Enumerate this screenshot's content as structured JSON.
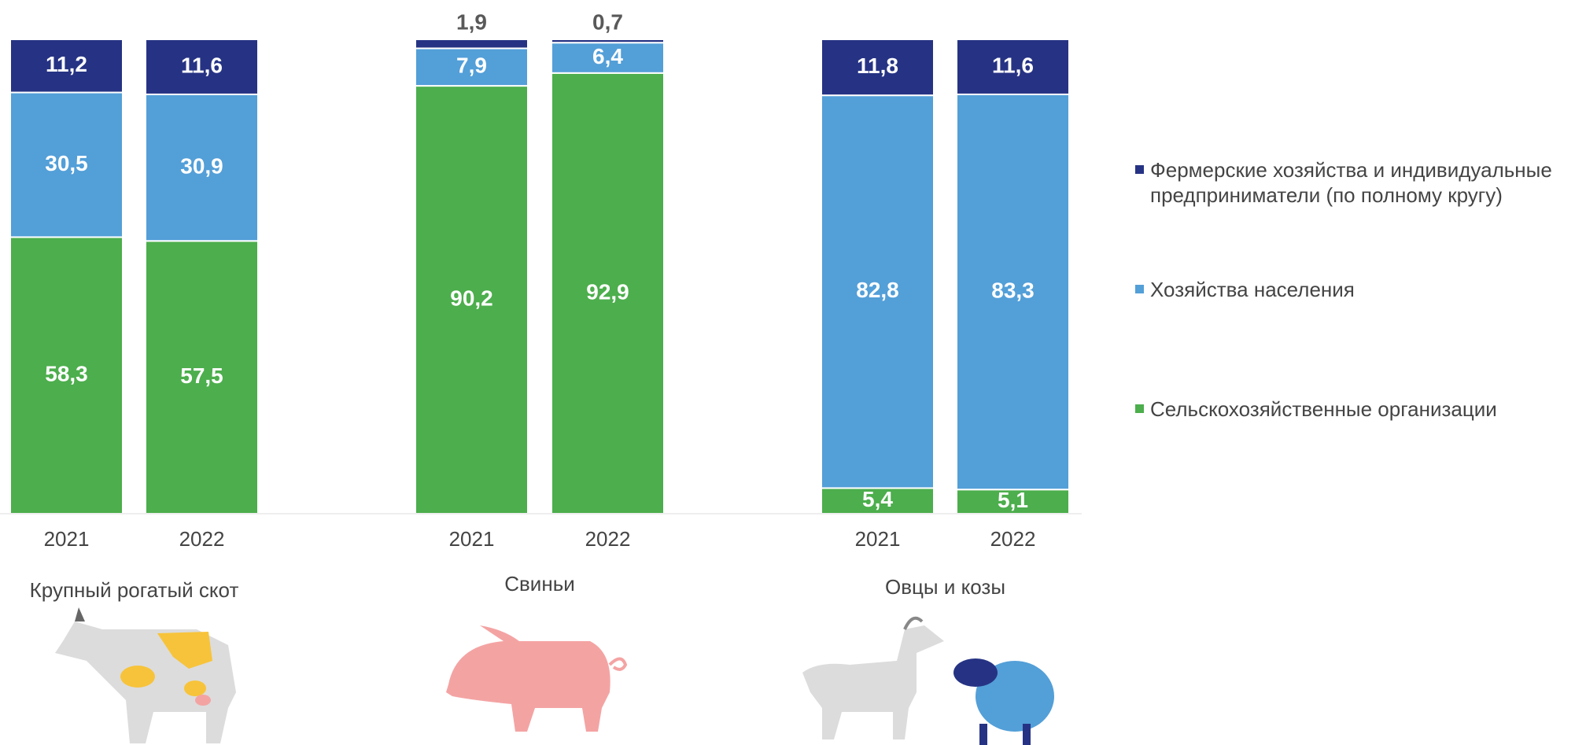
{
  "chart_data": {
    "type": "stacked_bar",
    "categories": [
      "2021",
      "2022",
      "2021",
      "2022",
      "2021",
      "2022"
    ],
    "groups": [
      {
        "label": "Крупный рогатый скот"
      },
      {
        "label": "Свиньи"
      },
      {
        "label": "Овцы и козы"
      }
    ],
    "series": [
      {
        "name": "Сельскохозяйственные организации",
        "color": "#4cae4c",
        "values": [
          58.3,
          57.5,
          90.2,
          92.9,
          5.4,
          5.1
        ],
        "value_labels": [
          "58,3",
          "57,5",
          "90,2",
          "92,9",
          "5,4",
          "5,1"
        ]
      },
      {
        "name": "Хозяйства населения",
        "color": "#539fd8",
        "values": [
          30.5,
          30.9,
          7.9,
          6.4,
          82.8,
          83.3
        ],
        "value_labels": [
          "30,5",
          "30,9",
          "7,9",
          "6,4",
          "82,8",
          "83,3"
        ]
      },
      {
        "name": "Фермерские хозяйства и индивидуальные предприниматели (по полному кругу)",
        "color": "#263384",
        "values": [
          11.2,
          11.6,
          1.9,
          0.7,
          11.8,
          11.6
        ],
        "value_labels": [
          "11,2",
          "11,6",
          "1,9",
          "0,7",
          "11,8",
          "11,6"
        ]
      }
    ]
  }
}
